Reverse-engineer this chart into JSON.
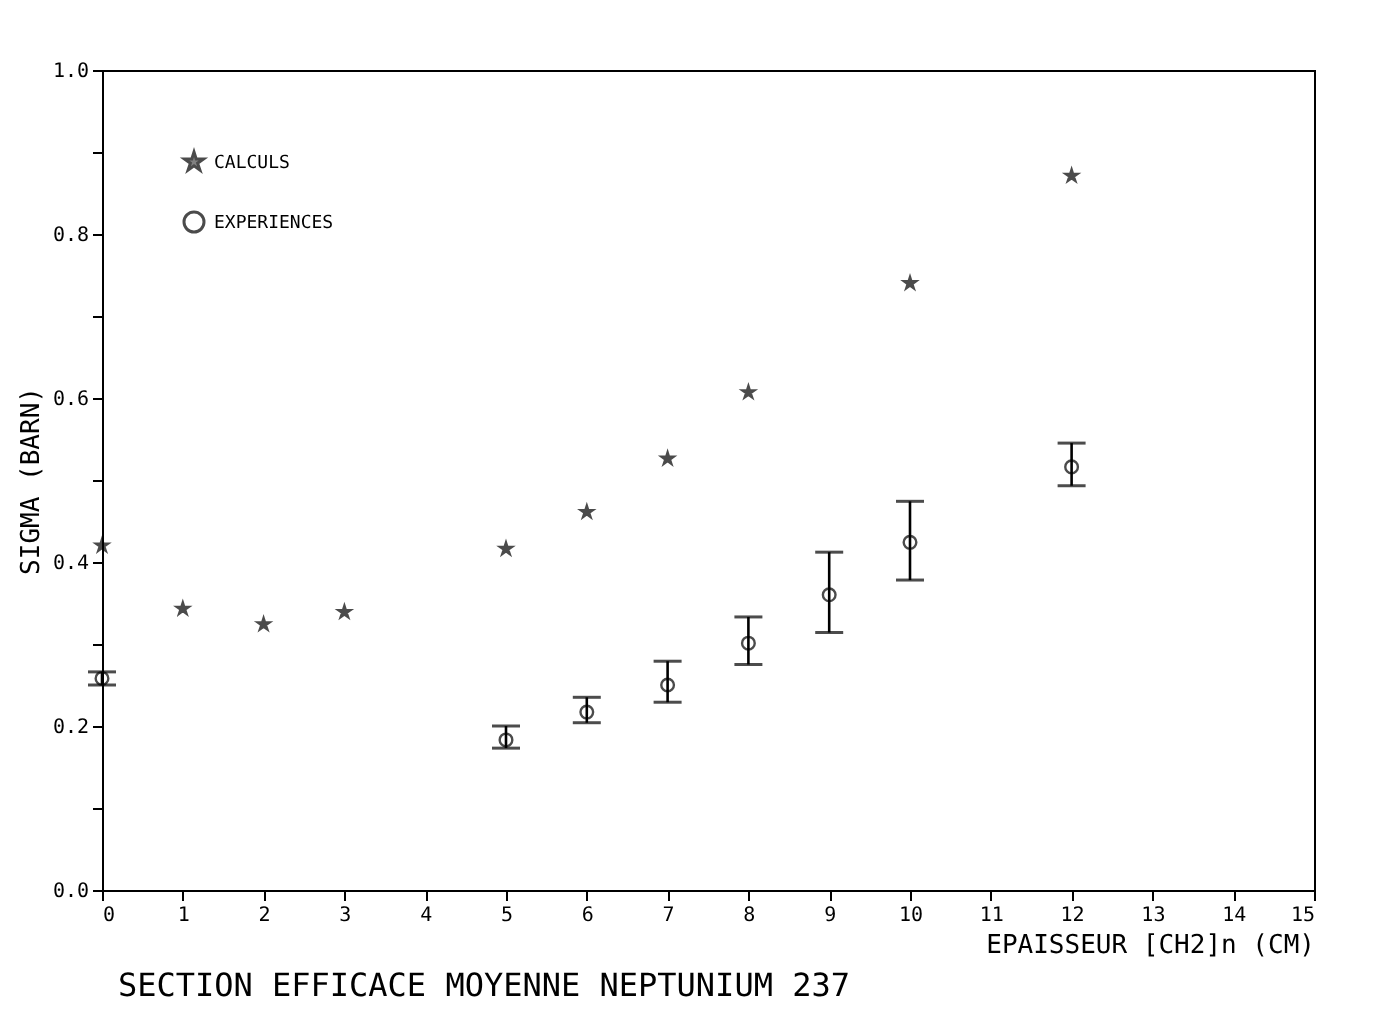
{
  "chart_data": {
    "type": "scatter",
    "title": "SECTION EFFICACE MOYENNE NEPTUNIUM 237",
    "xlabel": "EPAISSEUR [CH2]n (CM)",
    "ylabel": "SIGMA (BARN)",
    "series": [
      {
        "name": "CALCULS",
        "color": "#000000",
        "marker": "star",
        "x": [
          0,
          1,
          2,
          3,
          5,
          6,
          7,
          8,
          10,
          12
        ],
        "values": [
          0.42,
          0.343,
          0.324,
          0.339,
          0.416,
          0.461,
          0.526,
          0.607,
          0.74,
          0.871
        ]
      },
      {
        "name": "EXPERIENCES",
        "color": "#000000",
        "marker": "circle",
        "x": [
          0,
          5,
          6,
          7,
          8,
          9,
          10,
          12
        ],
        "values": [
          0.258,
          0.183,
          0.217,
          0.25,
          0.301,
          0.36,
          0.424,
          0.516
        ],
        "errors": [
          [
            0.25,
            0.266
          ],
          [
            0.173,
            0.2
          ],
          [
            0.204,
            0.235
          ],
          [
            0.229,
            0.279
          ],
          [
            0.275,
            0.333
          ],
          [
            0.314,
            0.412
          ],
          [
            0.378,
            0.474
          ],
          [
            0.493,
            0.545
          ]
        ]
      }
    ],
    "xlim": [
      0,
      15
    ],
    "xticks": [
      0,
      1,
      2,
      3,
      4,
      5,
      6,
      7,
      8,
      9,
      10,
      11,
      12,
      13,
      14,
      15
    ],
    "ylim": [
      0,
      1
    ],
    "yticks": [
      {
        "value": 0,
        "label": "0.0"
      },
      {
        "value": 0.1,
        "label": null
      },
      {
        "value": 0.2,
        "label": "0.2"
      },
      {
        "value": 0.3,
        "label": null
      },
      {
        "value": 0.4,
        "label": "0.4"
      },
      {
        "value": 0.5,
        "label": null
      },
      {
        "value": 0.6,
        "label": "0.6"
      },
      {
        "value": 0.7,
        "label": null
      },
      {
        "value": 0.8,
        "label": "0.8"
      },
      {
        "value": 0.9,
        "label": null
      },
      {
        "value": 1,
        "label": "1.0"
      }
    ],
    "legend": "top left",
    "grid": false
  }
}
